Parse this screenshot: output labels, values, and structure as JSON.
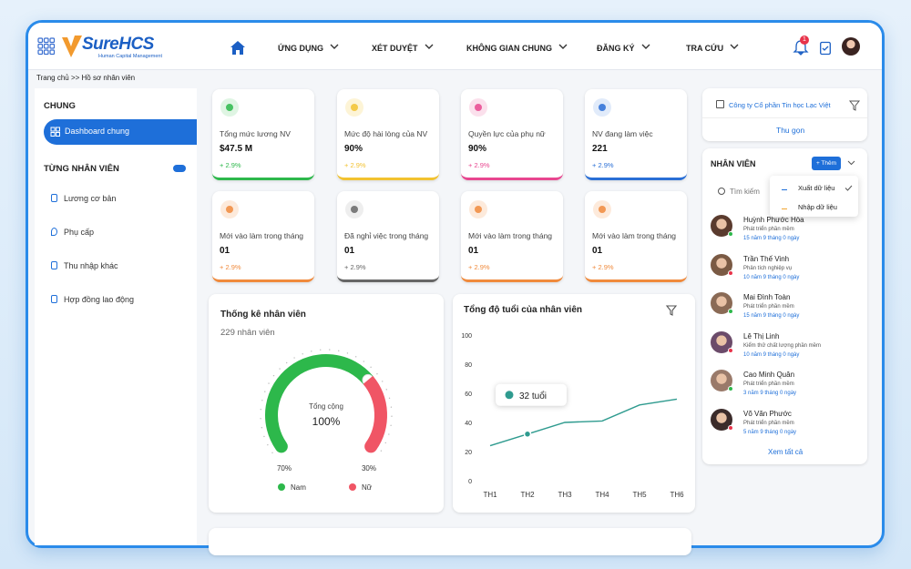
{
  "header": {
    "logo": "SureHCS",
    "logo_sub": "Human Capital Management",
    "nav": [
      "ỨNG DỤNG",
      "XÉT DUYỆT",
      "KHÔNG GIAN CHUNG",
      "ĐĂNG KÝ",
      "TRA CỨU"
    ],
    "notifications": "1"
  },
  "breadcrumb": "Trang chủ >> Hồ sơ nhân viên",
  "sidebar": {
    "section1": "CHUNG",
    "active": "Dashboard chung",
    "section2": "TỪNG NHÂN VIÊN",
    "items": [
      "Lương cơ bản",
      "Phụ cấp",
      "Thu nhập khác",
      "Hợp đồng lao động"
    ]
  },
  "cards": [
    {
      "label": "Tổng mức lương NV",
      "value": "$47.5 M",
      "change": "+ 2.9%",
      "color": "#2db84b",
      "tint": "#dff5e3"
    },
    {
      "label": "Mức độ hài lòng của NV",
      "value": "90%",
      "change": "+ 2.9%",
      "color": "#f2c230",
      "tint": "#fdf4d6"
    },
    {
      "label": "Quyền lực của phụ nữ",
      "value": "90%",
      "change": "+ 2.9%",
      "color": "#e8468f",
      "tint": "#fbe0ec"
    },
    {
      "label": "NV đang làm việc",
      "value": "221",
      "change": "+ 2.9%",
      "color": "#2a6fd6",
      "tint": "#e1ebfa"
    },
    {
      "label": "Mới vào làm trong tháng",
      "value": "01",
      "change": "+ 2.9%",
      "color": "#f08a3c",
      "tint": "#fdeadb"
    },
    {
      "label": "Đã nghỉ việc trong tháng",
      "value": "01",
      "change": "+ 2.9%",
      "color": "#666666",
      "tint": "#eeeeee"
    },
    {
      "label": "Mới vào làm trong tháng",
      "value": "01",
      "change": "+ 2.9%",
      "color": "#f08a3c",
      "tint": "#fdeadb"
    },
    {
      "label": "Mới vào làm trong tháng",
      "value": "01",
      "change": "+ 2.9%",
      "color": "#f08a3c",
      "tint": "#fdeadb"
    }
  ],
  "gauge": {
    "title": "Thống kê nhân viên",
    "subtitle": "229 nhân viên",
    "center_label": "Tổng cộng",
    "center_value": "100%",
    "series": [
      {
        "name": "Nam",
        "value": 70,
        "label": "70%",
        "color": "#2db84b"
      },
      {
        "name": "Nữ",
        "value": 30,
        "label": "30%",
        "color": "#f05565"
      }
    ]
  },
  "chart_data": {
    "type": "line",
    "title": "Tổng độ tuổi của nhân viên",
    "categories": [
      "TH1",
      "TH2",
      "TH3",
      "TH4",
      "TH5",
      "TH6"
    ],
    "values": [
      24,
      32,
      40,
      41,
      52,
      56
    ],
    "color": "#2f9b8f",
    "ylim": [
      0,
      100
    ],
    "yticks": [
      0,
      20,
      40,
      60,
      80,
      100
    ],
    "annotation": "32 tuổi"
  },
  "right_panel": {
    "company": "Công ty Cổ phần Tin học Lạc Việt",
    "collapse": "Thu gọn",
    "employees_title": "NHÂN VIÊN",
    "add": "+ Thêm",
    "search": "Tìm kiếm",
    "menu": [
      "Xuất dữ liệu",
      "Nhập dữ liệu"
    ],
    "employees": [
      {
        "name": "Huỳnh Phước Hòa",
        "role": "Phát triển phần mềm",
        "tenure": "15 năm 9 tháng 0 ngày"
      },
      {
        "name": "Trần Thế Vinh",
        "role": "Phân tích nghiệp vụ",
        "tenure": "10 năm 9 tháng 0 ngày"
      },
      {
        "name": "Mai Đình Toàn",
        "role": "Phát triển phần mềm",
        "tenure": "15 năm 9 tháng 0 ngày"
      },
      {
        "name": "Lê Thị Linh",
        "role": "Kiểm thử chất lượng phần mềm",
        "tenure": "10 năm 9 tháng 0 ngày"
      },
      {
        "name": "Cao Minh Quân",
        "role": "Phát triển phần mềm",
        "tenure": "3 năm 9 tháng 0 ngày"
      },
      {
        "name": "Võ Văn Phước",
        "role": "Phát triển phần mềm",
        "tenure": "5 năm 9 tháng 0 ngày"
      }
    ],
    "see_all": "Xem tất cả"
  }
}
